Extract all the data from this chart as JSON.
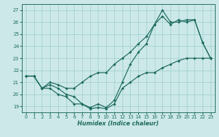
{
  "xlabel": "Humidex (Indice chaleur)",
  "bg_color": "#cce8e8",
  "grid_color": "#99cccc",
  "line_color": "#1e6b5e",
  "xlim": [
    -0.5,
    23.5
  ],
  "ylim": [
    18.5,
    27.5
  ],
  "xticks": [
    0,
    1,
    2,
    3,
    4,
    5,
    6,
    7,
    8,
    9,
    10,
    11,
    12,
    13,
    14,
    15,
    16,
    17,
    18,
    19,
    20,
    21,
    22,
    23
  ],
  "yticks": [
    19,
    20,
    21,
    22,
    23,
    24,
    25,
    26,
    27
  ],
  "line1_x": [
    0,
    1,
    2,
    3,
    4,
    5,
    6,
    7,
    8,
    9,
    10,
    11,
    12,
    13,
    14,
    15,
    16,
    17,
    18,
    19,
    20,
    21,
    22,
    23
  ],
  "line1_y": [
    21.5,
    21.5,
    20.5,
    20.5,
    20.0,
    19.8,
    19.2,
    19.2,
    18.8,
    18.9,
    18.8,
    19.2,
    20.5,
    21.0,
    21.5,
    21.8,
    21.8,
    22.2,
    22.5,
    22.8,
    23.0,
    23.0,
    23.0,
    23.0
  ],
  "line2_x": [
    0,
    1,
    2,
    3,
    4,
    5,
    6,
    7,
    8,
    9,
    10,
    11,
    12,
    13,
    14,
    15,
    16,
    17,
    18,
    19,
    20,
    21,
    22,
    23
  ],
  "line2_y": [
    21.5,
    21.5,
    20.5,
    20.8,
    20.5,
    20.0,
    19.8,
    19.2,
    18.9,
    19.2,
    18.9,
    19.5,
    21.0,
    22.5,
    23.5,
    24.2,
    25.8,
    27.0,
    26.0,
    26.0,
    26.2,
    26.2,
    24.3,
    23.0
  ],
  "line3_x": [
    0,
    1,
    2,
    3,
    4,
    5,
    6,
    7,
    8,
    9,
    10,
    11,
    12,
    13,
    14,
    15,
    16,
    17,
    18,
    19,
    20,
    21,
    22,
    23
  ],
  "line3_y": [
    21.5,
    21.5,
    20.5,
    21.0,
    20.8,
    20.5,
    20.5,
    21.0,
    21.5,
    21.8,
    21.8,
    22.5,
    23.0,
    23.5,
    24.2,
    24.8,
    25.8,
    26.5,
    25.8,
    26.2,
    26.0,
    26.2,
    24.3,
    23.0
  ]
}
